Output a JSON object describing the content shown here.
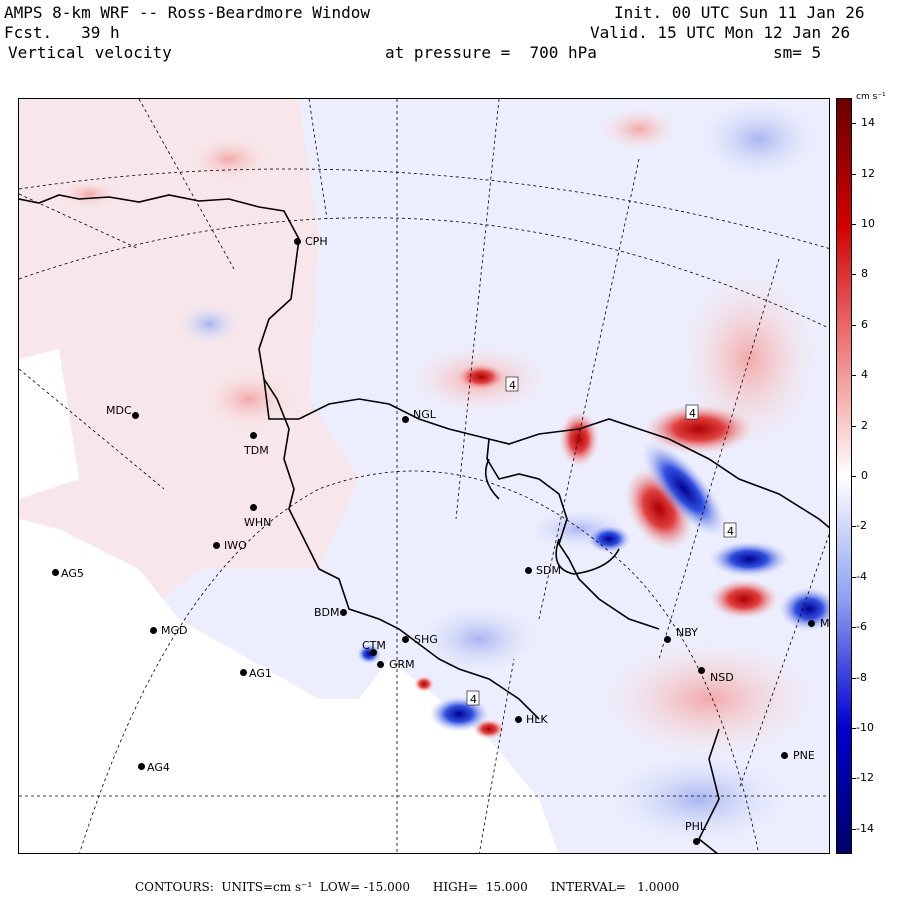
{
  "header": {
    "model_title": "AMPS 8-km WRF -- Ross-Beardmore Window",
    "forecast_line": "Fcst.   39 h",
    "field_name": "Vertical velocity",
    "init_time": "Init. 00 UTC Sun 11 Jan 26",
    "valid_time": "Valid. 15 UTC Mon 12 Jan 26",
    "pressure_level": "at pressure =  700 hPa",
    "smoothing": "sm= 5"
  },
  "colorbar": {
    "units": "cm s⁻¹",
    "tick_labels": [
      "14",
      "12",
      "10",
      "8",
      "6",
      "4",
      "2",
      "0",
      "-2",
      "-4",
      "-6",
      "-8",
      "-10",
      "-12",
      "-14"
    ],
    "range": [
      -15,
      15
    ],
    "colors": {
      "max": "#6a0000",
      "high": "#d00000",
      "mid_high": "#f08080",
      "zero": "#ffffff",
      "mid_low": "#8a9ef0",
      "low": "#0000d0",
      "min": "#00006a"
    }
  },
  "contour_labels": [
    "4",
    "4",
    "4",
    "4"
  ],
  "stations": [
    {
      "id": "CPH",
      "label": "CPH"
    },
    {
      "id": "MDC",
      "label": "MDC"
    },
    {
      "id": "TDM",
      "label": "TDM"
    },
    {
      "id": "NGL",
      "label": "NGL"
    },
    {
      "id": "WHN",
      "label": "WHN"
    },
    {
      "id": "IWO",
      "label": "IWO"
    },
    {
      "id": "AG5",
      "label": "AG5"
    },
    {
      "id": "SDM",
      "label": "SDM"
    },
    {
      "id": "BDM",
      "label": "BDM"
    },
    {
      "id": "MGD",
      "label": "MGD"
    },
    {
      "id": "SHG",
      "label": "SHG"
    },
    {
      "id": "CTM",
      "label": "CTM"
    },
    {
      "id": "GRM",
      "label": "GRM"
    },
    {
      "id": "NBY",
      "label": "NBY"
    },
    {
      "id": "AG1",
      "label": "AG1"
    },
    {
      "id": "NSD",
      "label": "NSD"
    },
    {
      "id": "HLK",
      "label": "HLK"
    },
    {
      "id": "AG4",
      "label": "AG4"
    },
    {
      "id": "PNE",
      "label": "PNE"
    },
    {
      "id": "PHL",
      "label": "PHL"
    },
    {
      "id": "MDR",
      "label": "M"
    }
  ],
  "footer": {
    "contours_label": "CONTOURS:",
    "units_label": "UNITS=cm s⁻¹",
    "low_label": "LOW= -15.000",
    "high_label": "HIGH=  15.000",
    "interval_label": "INTERVAL=   1.0000"
  }
}
